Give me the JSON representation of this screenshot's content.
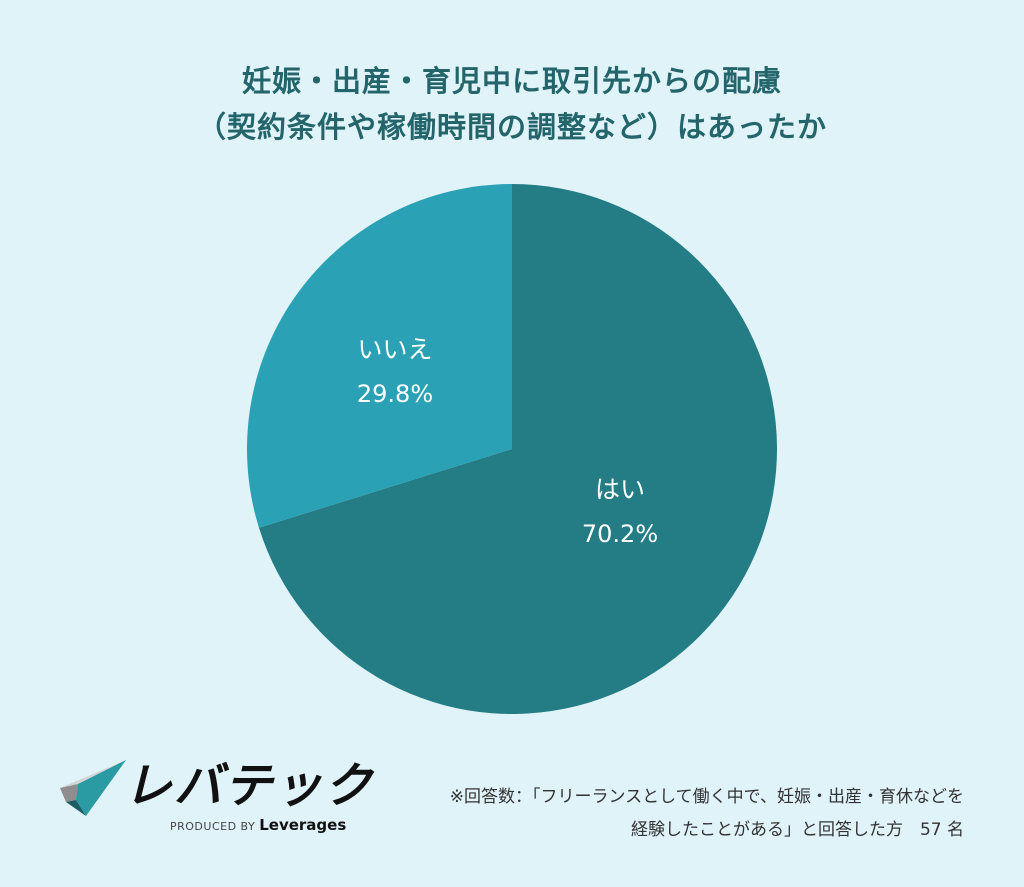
{
  "title": {
    "line1": "妊娠・出産・育児中に取引先からの配慮",
    "line2": "（契約条件や稼働時間の調整など）はあったか"
  },
  "chart_data": {
    "type": "pie",
    "title": "妊娠・出産・育児中に取引先からの配慮（契約条件や稼働時間の調整など）はあったか",
    "categories": [
      "はい",
      "いいえ"
    ],
    "values": [
      70.2,
      29.8
    ],
    "unit": "%",
    "colors": [
      "#247c84",
      "#2aa1b4"
    ],
    "start_angle": "12 o'clock, clockwise",
    "legend": "none (labels inside slices)",
    "sample_size": 57
  },
  "slices": [
    {
      "label": "はい",
      "value_text": "70.2%",
      "color": "#247c84"
    },
    {
      "label": "いいえ",
      "value_text": "29.8%",
      "color": "#2aa1b4"
    }
  ],
  "logo": {
    "wordmark": "レバテック",
    "produced_by": "PRODUCED BY",
    "brand": "Leverages"
  },
  "note": {
    "line1": "※回答数：「フリーランスとして働く中で、妊娠・出産・育休などを",
    "line2": "経験したことがある」と回答した方　57 名"
  },
  "colors": {
    "background": "#dff3f9",
    "title": "#23656a",
    "yes": "#247c84",
    "no": "#2aa1b4"
  }
}
